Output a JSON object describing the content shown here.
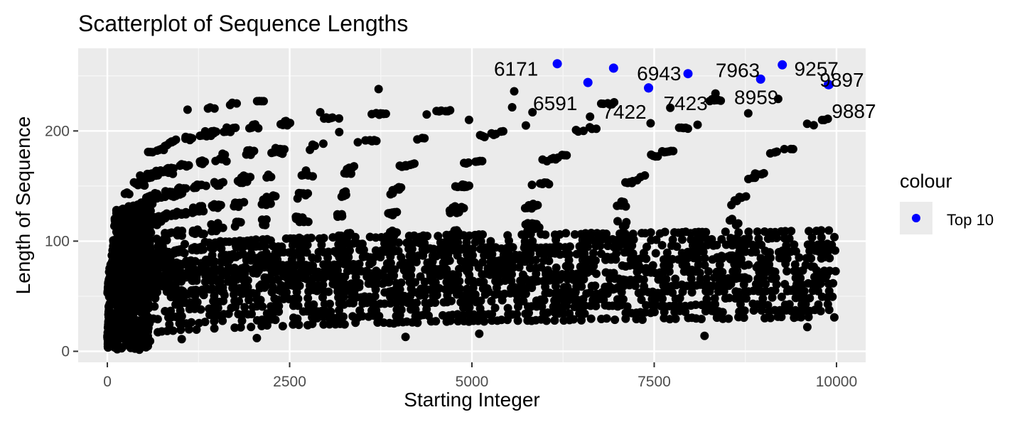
{
  "chart_data": {
    "type": "scatter",
    "title": "Scatterplot of Sequence Lengths",
    "xlabel": "Starting Integer",
    "ylabel": "Length of Sequence",
    "xlim": [
      -400,
      10400
    ],
    "ylim": [
      -10,
      275
    ],
    "x_ticks": [
      0,
      2500,
      5000,
      7500,
      10000
    ],
    "x_tick_labels": [
      "0",
      "2500",
      "5000",
      "7500",
      "10000"
    ],
    "y_ticks": [
      0,
      100,
      200
    ],
    "y_tick_labels": [
      "0",
      "100",
      "200"
    ],
    "grid": true,
    "legend": {
      "title": "colour",
      "position": "right",
      "entries": [
        {
          "label": "Top 10",
          "color": "#0000ff"
        }
      ]
    },
    "colors": {
      "points": "#000000",
      "top10": "#0000ff",
      "panel": "#ebebeb",
      "grid": "#ffffff"
    },
    "bands": [
      [
        112,
        1,
        4,
        55
      ],
      [
        108,
        2,
        8,
        58
      ],
      [
        103,
        3,
        12,
        62
      ],
      [
        98,
        4,
        18,
        66
      ],
      [
        93,
        6,
        25,
        70
      ],
      [
        88,
        9,
        34,
        75
      ],
      [
        83,
        12,
        45,
        80
      ],
      [
        78,
        16,
        58,
        86
      ],
      [
        73,
        20,
        72,
        92
      ],
      [
        68,
        26,
        88,
        98
      ],
      [
        63,
        32,
        108,
        105
      ],
      [
        58,
        40,
        132,
        112
      ],
      [
        53,
        48,
        160,
        120
      ],
      [
        48,
        58,
        195,
        128
      ],
      [
        43,
        70,
        240,
        137
      ],
      [
        38,
        84,
        295,
        146
      ],
      [
        33,
        100,
        365,
        155
      ],
      [
        28,
        120,
        450,
        165
      ],
      [
        23,
        142,
        560,
        175
      ],
      [
        18,
        168,
        700,
        186
      ],
      [
        13,
        196,
        880,
        197
      ],
      [
        8,
        228,
        1100,
        208
      ],
      [
        3,
        262,
        1380,
        218
      ]
    ],
    "scatter_points": [
      {
        "x": 5580,
        "y": 236
      },
      {
        "x": 3720,
        "y": 238
      },
      {
        "x": 2920,
        "y": 217
      },
      {
        "x": 4380,
        "y": 215
      },
      {
        "x": 2450,
        "y": 209
      },
      {
        "x": 4960,
        "y": 210
      },
      {
        "x": 5830,
        "y": 217
      },
      {
        "x": 6620,
        "y": 213
      },
      {
        "x": 6950,
        "y": 226
      },
      {
        "x": 7720,
        "y": 221
      },
      {
        "x": 8340,
        "y": 234
      },
      {
        "x": 8790,
        "y": 216
      },
      {
        "x": 9200,
        "y": 229
      },
      {
        "x": 9880,
        "y": 211
      },
      {
        "x": 3180,
        "y": 199
      },
      {
        "x": 5740,
        "y": 205
      },
      {
        "x": 6530,
        "y": 200
      },
      {
        "x": 7450,
        "y": 207
      },
      {
        "x": 8190,
        "y": 14
      },
      {
        "x": 4090,
        "y": 13
      },
      {
        "x": 2050,
        "y": 12
      },
      {
        "x": 1020,
        "y": 11
      },
      {
        "x": 5100,
        "y": 16
      },
      {
        "x": 9600,
        "y": 22
      }
    ],
    "top10": [
      {
        "x": 6171,
        "y": 261,
        "label": "6171"
      },
      {
        "x": 6591,
        "y": 244,
        "label": "6591"
      },
      {
        "x": 6943,
        "y": 257,
        "label": "6943"
      },
      {
        "x": 7422,
        "y": 239,
        "label": "7422"
      },
      {
        "x": 7423,
        "y": 239,
        "label": "7423"
      },
      {
        "x": 7963,
        "y": 252,
        "label": "7963"
      },
      {
        "x": 8959,
        "y": 247,
        "label": "8959"
      },
      {
        "x": 9257,
        "y": 260,
        "label": "9257"
      },
      {
        "x": 9887,
        "y": 242,
        "label": "9887"
      },
      {
        "x": 9897,
        "y": 242,
        "label": "9897"
      }
    ]
  }
}
